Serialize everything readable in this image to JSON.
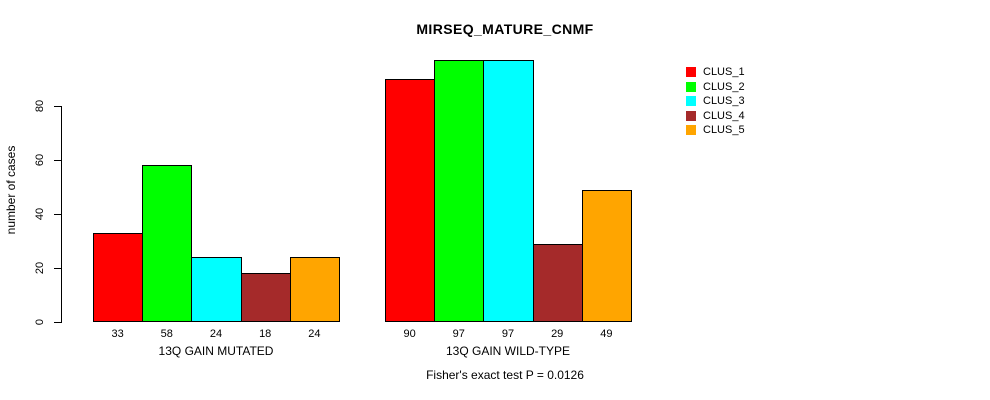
{
  "title": "MIRSEQ_MATURE_CNMF",
  "ylabel": "number of cases",
  "annotation": "Fisher's exact test P = 0.0126",
  "colors": {
    "clus_1": "#FF0000",
    "clus_2": "#00FF00",
    "clus_3": "#00FFFF",
    "clus_4": "#A52A2A",
    "clus_5": "#FFA500",
    "axis": "#000000",
    "background": "#FFFFFF"
  },
  "chart_data": {
    "type": "bar",
    "title": "MIRSEQ_MATURE_CNMF",
    "xlabel": "",
    "ylabel": "number of cases",
    "categories": [
      "13Q GAIN MUTATED",
      "13Q GAIN WILD-TYPE"
    ],
    "series": [
      {
        "name": "CLUS_1",
        "color": "#FF0000",
        "values": [
          33,
          90
        ]
      },
      {
        "name": "CLUS_2",
        "color": "#00FF00",
        "values": [
          58,
          97
        ]
      },
      {
        "name": "CLUS_3",
        "color": "#00FFFF",
        "values": [
          24,
          97
        ]
      },
      {
        "name": "CLUS_4",
        "color": "#A52A2A",
        "values": [
          18,
          29
        ]
      },
      {
        "name": "CLUS_5",
        "color": "#FFA500",
        "values": [
          24,
          49
        ]
      }
    ],
    "bar_value_labels": [
      [
        33,
        58,
        24,
        18,
        24
      ],
      [
        90,
        97,
        97,
        29,
        49
      ]
    ],
    "yticks": [
      0,
      20,
      40,
      60,
      80
    ],
    "ylim": [
      0,
      100
    ],
    "grid": false,
    "legend_position": "right",
    "legend_entries": [
      "CLUS_1",
      "CLUS_2",
      "CLUS_3",
      "CLUS_4",
      "CLUS_5"
    ],
    "annotation": "Fisher's exact test P = 0.0126"
  }
}
